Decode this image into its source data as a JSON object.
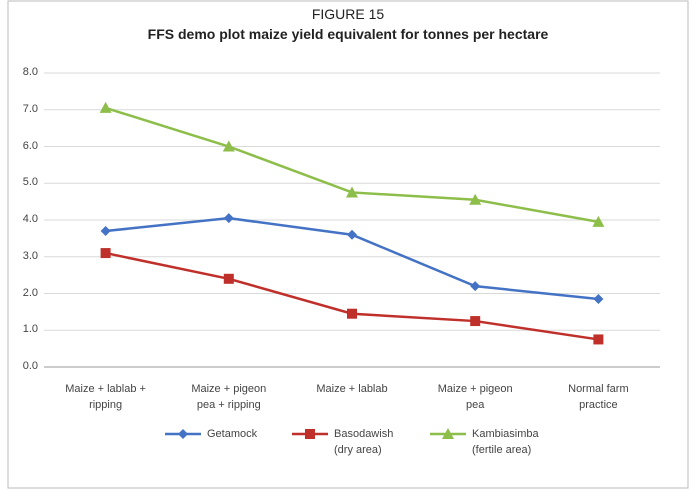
{
  "chart_data": {
    "type": "line",
    "title": "FIGURE 15",
    "subtitle": "FFS demo plot maize yield equivalent for tonnes per hectare",
    "categories": [
      "Maize + lablab + ripping",
      "Maize + pigeon pea + ripping",
      "Maize + lablab",
      "Maize + pigeon pea",
      "Normal farm practice"
    ],
    "series": [
      {
        "name": "Getamock",
        "color": "#4472c4",
        "marker": "diamond",
        "values": [
          3.7,
          4.05,
          3.6,
          2.2,
          1.85
        ]
      },
      {
        "name": "Basodawish (dry area)",
        "color": "#c0302b",
        "marker": "square",
        "values": [
          3.1,
          2.4,
          1.45,
          1.25,
          0.75
        ]
      },
      {
        "name": "Kambiasimba (fertile area)",
        "color": "#8dbe4a",
        "marker": "triangle",
        "values": [
          7.05,
          6.0,
          4.75,
          4.55,
          3.95
        ]
      }
    ],
    "ylim": [
      0,
      8
    ],
    "yticks": [
      {
        "value": 0,
        "label": "0.0"
      },
      {
        "value": 1,
        "label": "1.0"
      },
      {
        "value": 2,
        "label": "2.0"
      },
      {
        "value": 3,
        "label": "3.0"
      },
      {
        "value": 4,
        "label": "4.0"
      },
      {
        "value": 5,
        "label": "5.0"
      },
      {
        "value": 6,
        "label": "6.0"
      },
      {
        "value": 7,
        "label": "7.0"
      },
      {
        "value": 8,
        "label": "8.0"
      }
    ],
    "grid": true,
    "legend": "bottom"
  }
}
